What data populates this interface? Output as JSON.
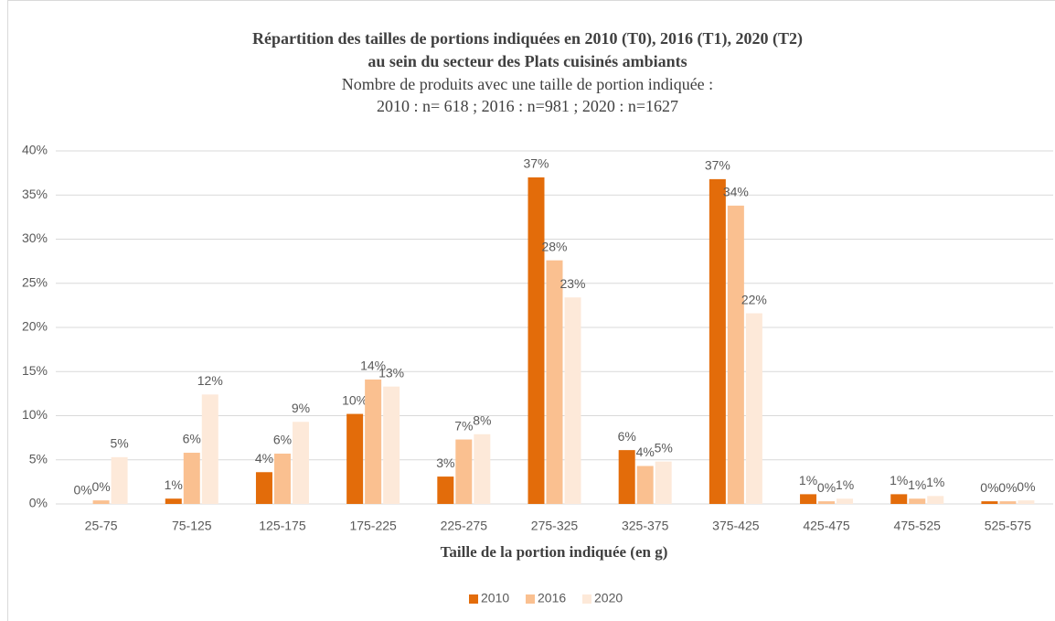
{
  "chart_data": {
    "type": "bar",
    "title": [
      "Répartition des tailles de portions indiquées en 2010 (T0), 2016 (T1), 2020 (T2)",
      "au sein du secteur des Plats cuisinés ambiants"
    ],
    "subtitle": [
      "Nombre de produits avec une taille de portion indiquée :",
      "2010 : n= 618 ; 2016 : n=981 ; 2020 : n=1627"
    ],
    "x_label": "Taille de la portion indiquée (en g)",
    "categories": [
      "25-75",
      "75-125",
      "125-175",
      "175-225",
      "225-275",
      "275-325",
      "325-375",
      "375-425",
      "425-475",
      "475-525",
      "525-575"
    ],
    "series": [
      {
        "name": "2010",
        "color": "#e36c0a",
        "values": [
          0,
          0.6,
          3.6,
          10.2,
          3.1,
          37.0,
          6.1,
          36.8,
          1.1,
          1.1,
          0.3
        ],
        "value_labels": [
          "0%",
          "1%",
          "4%",
          "10%",
          "3%",
          "37%",
          "6%",
          "37%",
          "1%",
          "1%",
          "0%"
        ]
      },
      {
        "name": "2016",
        "color": "#fac090",
        "values": [
          0.4,
          5.8,
          5.7,
          14.1,
          7.3,
          27.6,
          4.3,
          33.8,
          0.3,
          0.6,
          0.3
        ],
        "value_labels": [
          "0%",
          "6%",
          "6%",
          "14%",
          "7%",
          "28%",
          "4%",
          "34%",
          "0%",
          "1%",
          "0%"
        ]
      },
      {
        "name": "2020",
        "color": "#fde9d9",
        "values": [
          5.3,
          12.4,
          9.3,
          13.3,
          7.9,
          23.4,
          4.8,
          21.6,
          0.6,
          0.9,
          0.4
        ],
        "value_labels": [
          "5%",
          "12%",
          "9%",
          "13%",
          "8%",
          "23%",
          "5%",
          "22%",
          "1%",
          "1%",
          "0%"
        ]
      }
    ],
    "ylim": [
      0,
      40
    ],
    "yticks": [
      {
        "value": 0,
        "label": "0%"
      },
      {
        "value": 5,
        "label": "5%"
      },
      {
        "value": 10,
        "label": "10%"
      },
      {
        "value": 15,
        "label": "15%"
      },
      {
        "value": 20,
        "label": "20%"
      },
      {
        "value": 25,
        "label": "25%"
      },
      {
        "value": 30,
        "label": "30%"
      },
      {
        "value": 35,
        "label": "35%"
      },
      {
        "value": 40,
        "label": "40%"
      }
    ],
    "grid": true,
    "legend": "bottom"
  }
}
